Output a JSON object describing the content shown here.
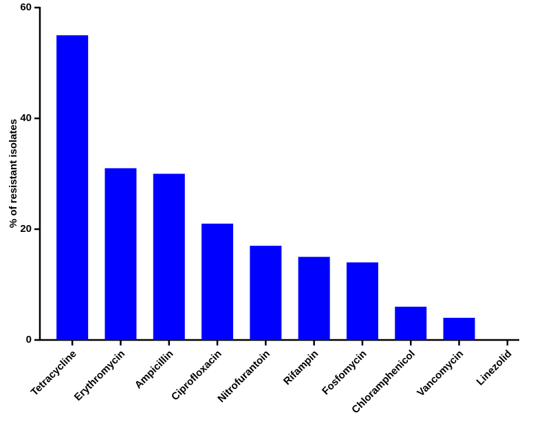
{
  "chart_data": {
    "type": "bar",
    "ylabel": "% of resistant isolates",
    "categories": [
      "Tetracycline",
      "Erythromycin",
      "Ampicillin",
      "Ciprofloxacin",
      "Nitrofurantoin",
      "Rifampin",
      "Fosfomycin",
      "Chloramphenicol",
      "Vancomycin",
      "Linezolid"
    ],
    "values": [
      55,
      31,
      30,
      21,
      17,
      15,
      14,
      6,
      4,
      0
    ],
    "color": "#0000ff",
    "ylim": [
      0,
      60
    ],
    "yticks": [
      0,
      20,
      40,
      60
    ]
  }
}
